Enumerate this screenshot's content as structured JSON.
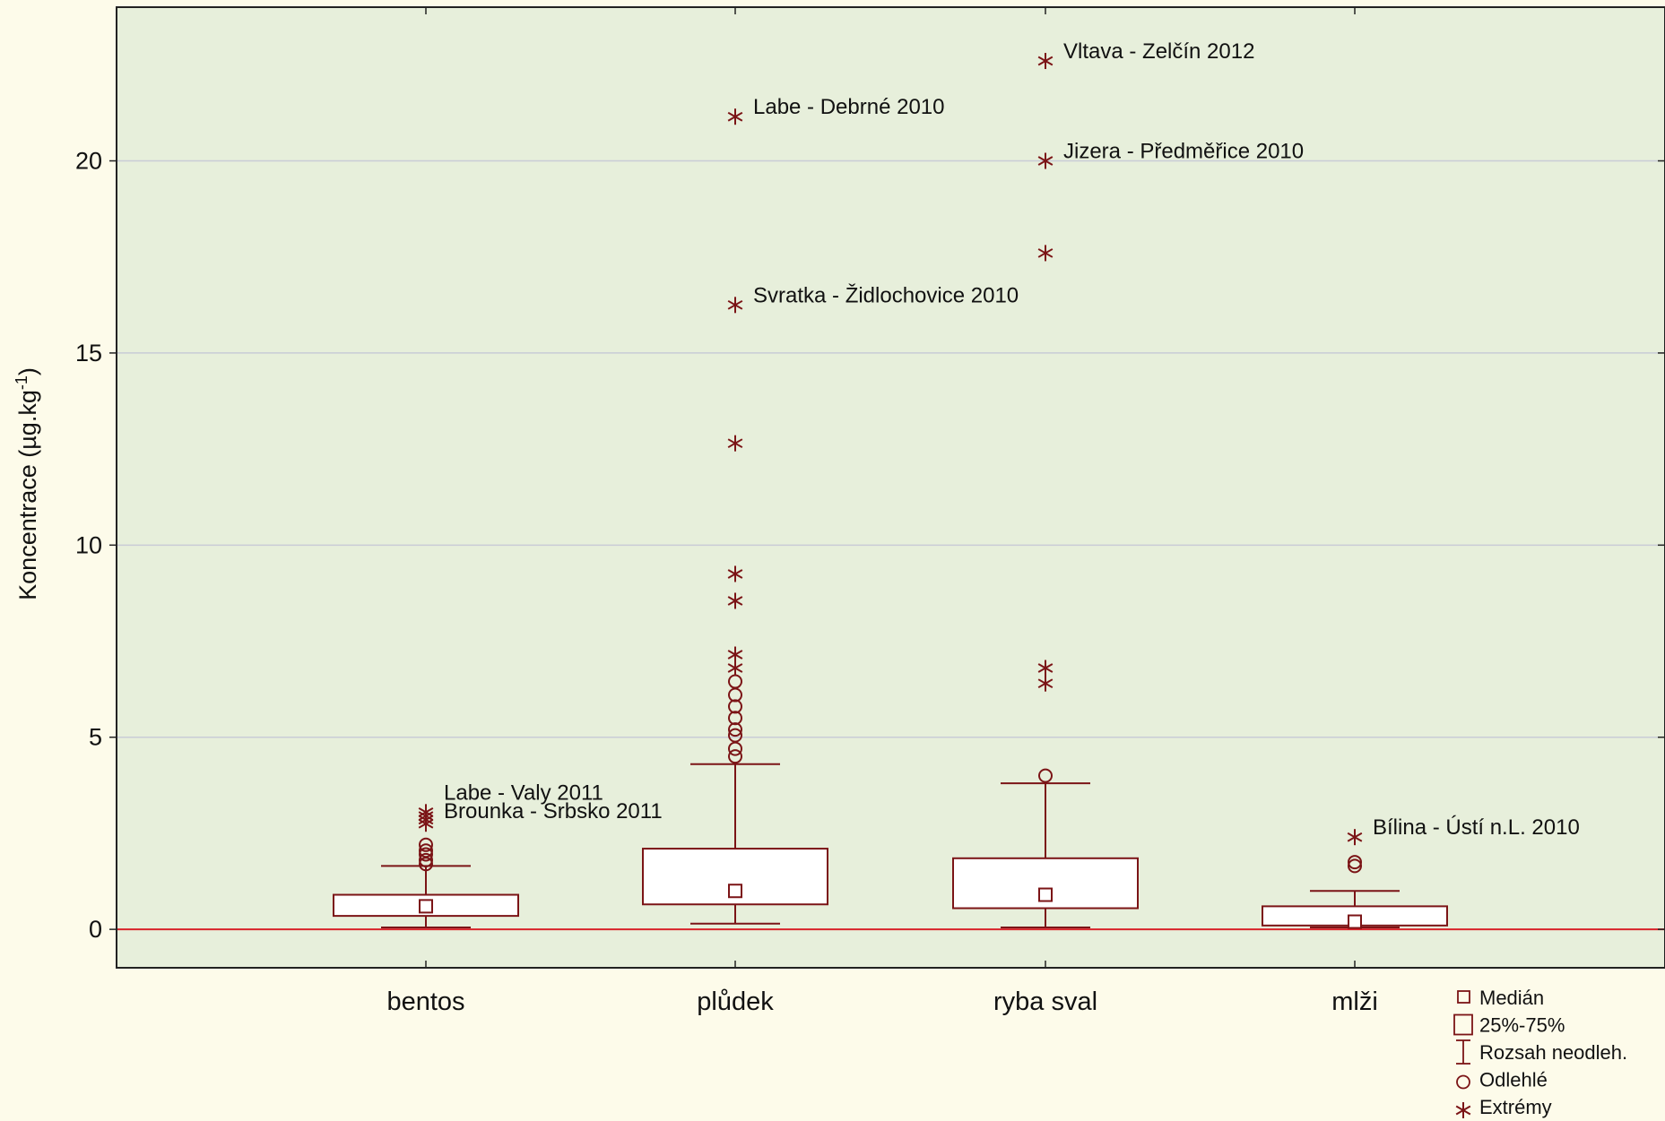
{
  "chart_data": {
    "type": "boxplot",
    "ylabel": "Koncentrace (µg.kg",
    "ylabel_superscript": "-1",
    "ylabel_suffix": ")",
    "ylim": [
      -1,
      24
    ],
    "yticks": [
      0,
      5,
      10,
      15,
      20
    ],
    "reference_line": 0,
    "grid": true,
    "colors": {
      "plot_bg": "#e7efdb",
      "page_bg": "#fdfbea",
      "series": "#7b1416",
      "reference": "#d9232a",
      "grid": "#c9ccd6"
    },
    "categories": [
      "bentos",
      "plůdek",
      "ryba sval",
      "mlži"
    ],
    "boxes": [
      {
        "category": "bentos",
        "median": 0.6,
        "q1": 0.35,
        "q3": 0.9,
        "whisker_low": 0.05,
        "whisker_high": 1.65,
        "outliers": [
          1.7,
          1.8,
          1.95,
          2.05,
          2.2
        ],
        "extremes": [
          2.75,
          2.85,
          2.95,
          3.05
        ],
        "annotations": [
          {
            "y": 3.05,
            "text": "Labe - Valy 2011"
          },
          {
            "y": 2.8,
            "text": "Brounka - Srbsko 2011"
          }
        ]
      },
      {
        "category": "plůdek",
        "median": 1.0,
        "q1": 0.65,
        "q3": 2.1,
        "whisker_low": 0.15,
        "whisker_high": 4.3,
        "outliers": [
          4.5,
          4.7,
          5.05,
          5.2,
          5.5,
          5.8,
          6.1,
          6.45
        ],
        "extremes": [
          6.8,
          7.15,
          8.55,
          9.25,
          12.65,
          16.25,
          21.15
        ],
        "annotations": [
          {
            "y": 21.15,
            "text": "Labe - Debrné 2010"
          },
          {
            "y": 16.25,
            "text": "Svratka - Židlochovice 2010"
          }
        ]
      },
      {
        "category": "ryba sval",
        "median": 0.9,
        "q1": 0.55,
        "q3": 1.85,
        "whisker_low": 0.05,
        "whisker_high": 3.8,
        "outliers": [
          4.0
        ],
        "extremes": [
          6.4,
          6.8,
          17.6,
          20.0,
          22.6
        ],
        "annotations": [
          {
            "y": 22.6,
            "text": "Vltava - Zelčín 2012"
          },
          {
            "y": 20.0,
            "text": "Jizera - Předměřice 2010"
          }
        ]
      },
      {
        "category": "mlži",
        "median": 0.2,
        "q1": 0.1,
        "q3": 0.6,
        "whisker_low": 0.05,
        "whisker_high": 1.0,
        "outliers": [
          1.65,
          1.75
        ],
        "extremes": [
          2.4
        ],
        "annotations": [
          {
            "y": 2.4,
            "text": "Bílina - Ústí n.L. 2010"
          }
        ]
      }
    ],
    "legend": {
      "position": "bottom-right",
      "items": [
        "Medián",
        "25%-75%",
        "Rozsah neodleh.",
        "Odlehlé",
        "Extrémy"
      ]
    }
  }
}
